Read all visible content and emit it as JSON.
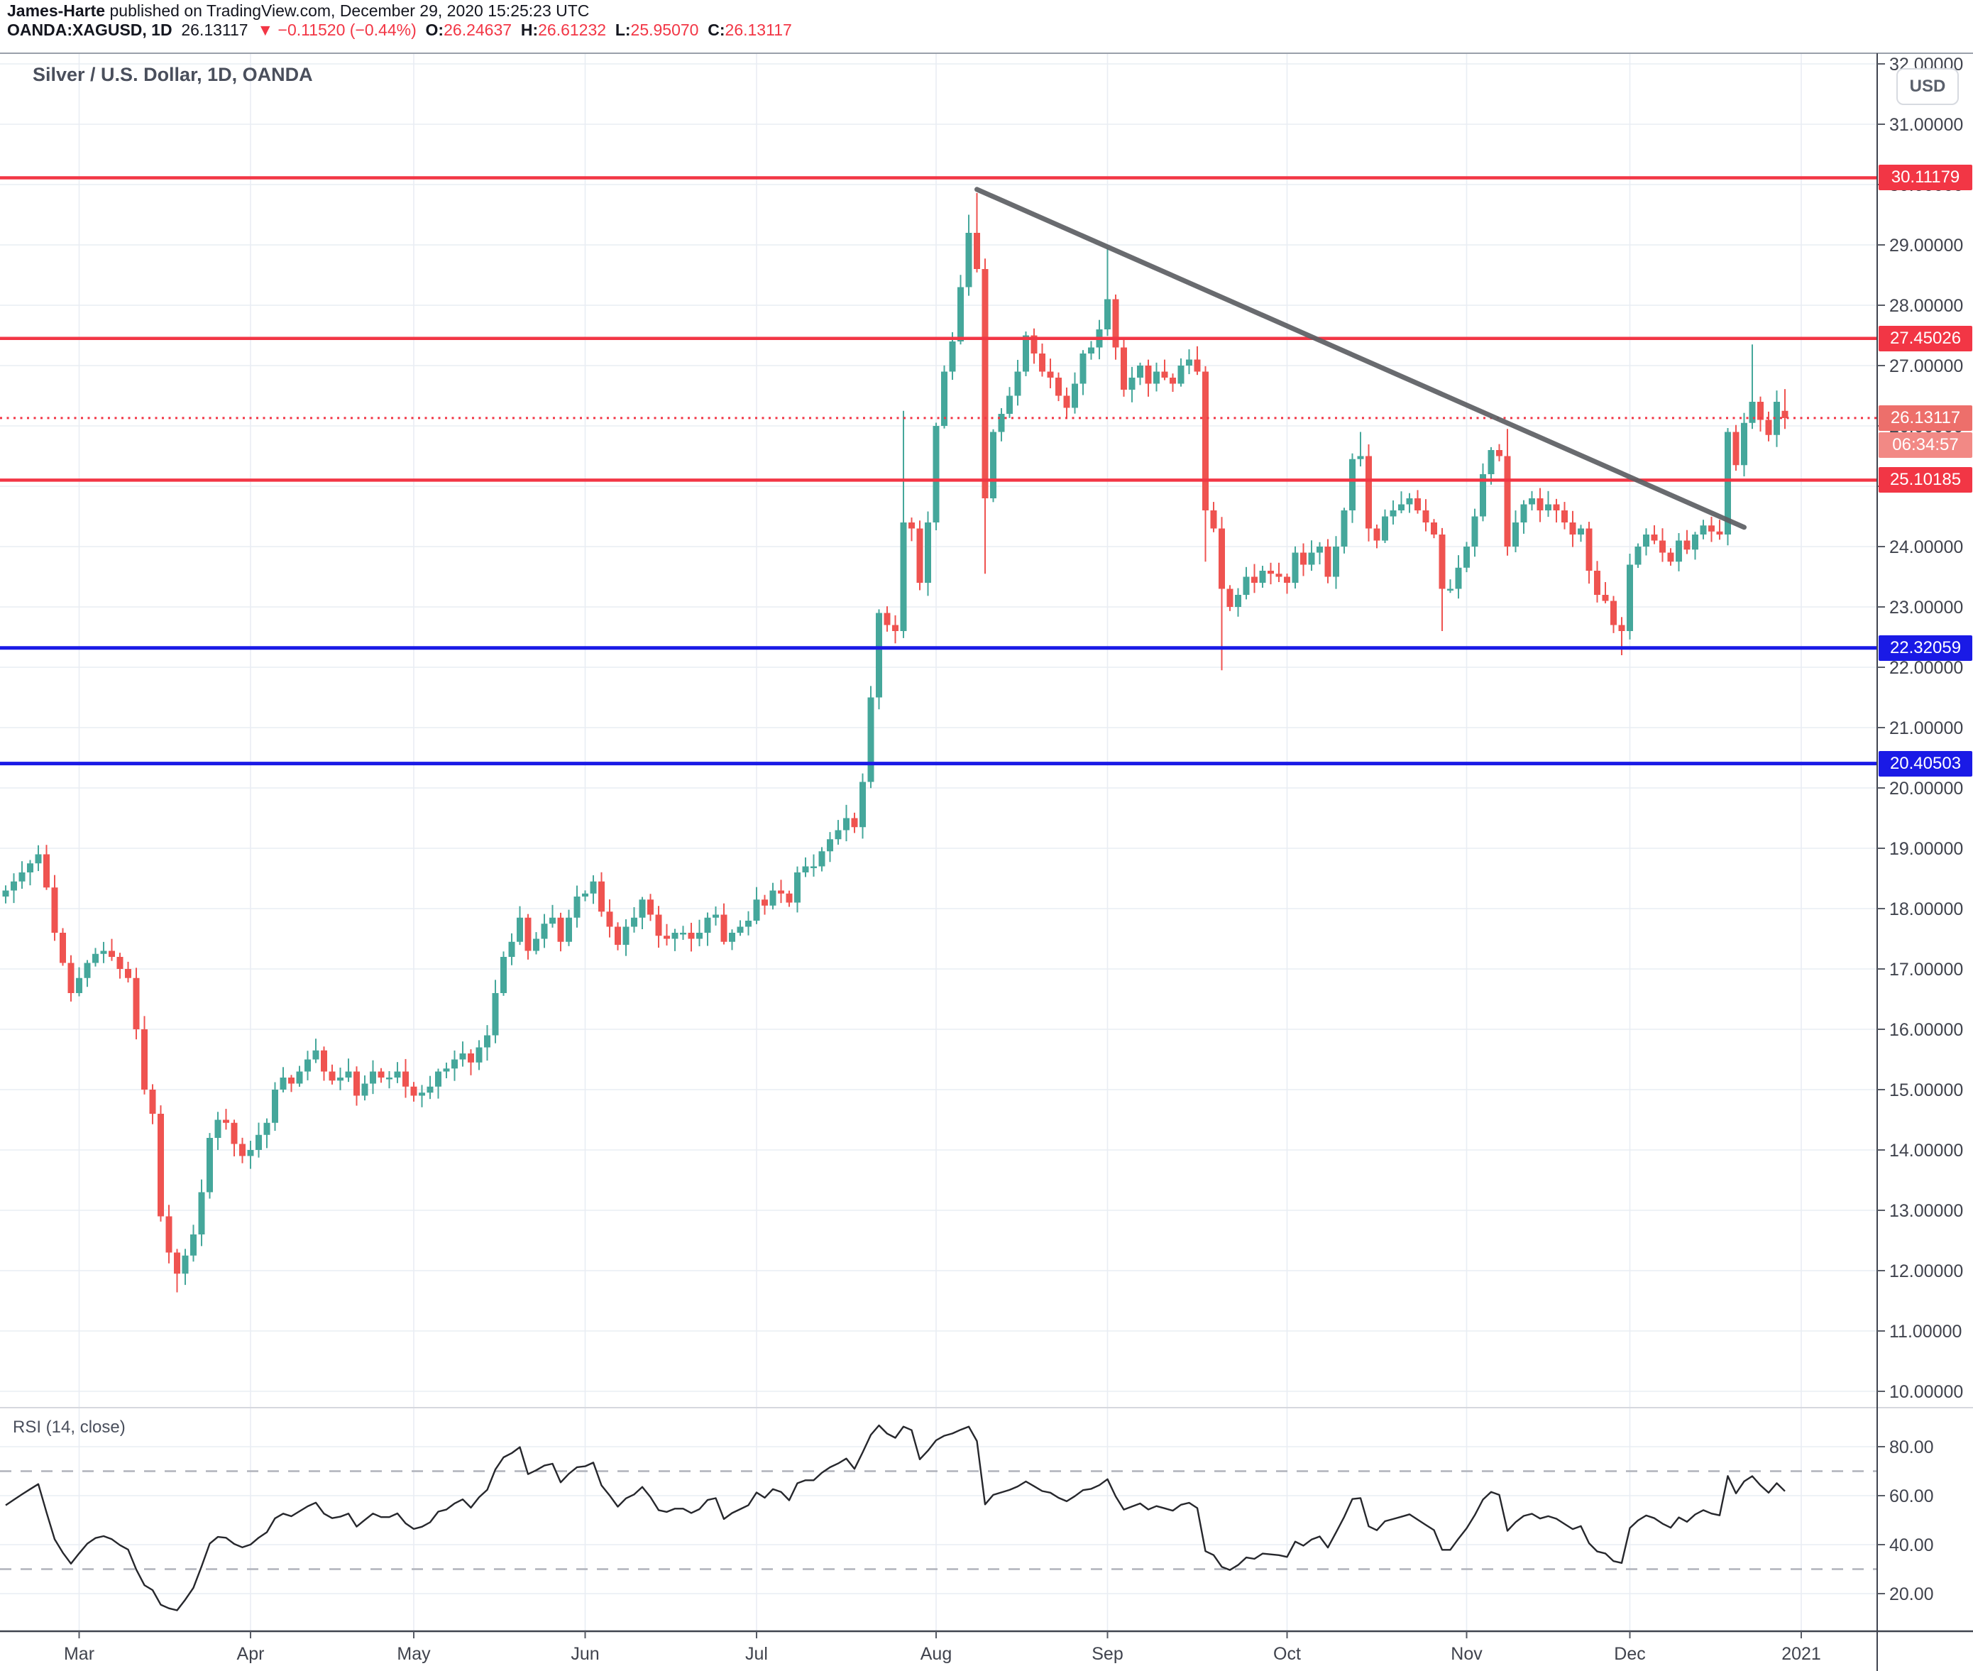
{
  "header": {
    "author": "James-Harte",
    "line1_rest": " published on TradingView.com, December 29, 2020 15:25:23 UTC",
    "symbol": "OANDA:XAGUSD, 1D",
    "last": "26.13117",
    "direction_icon": "▼",
    "change": "−0.11520 (−0.44%)",
    "ohlc": [
      {
        "k": "O:",
        "v": "26.24637"
      },
      {
        "k": "H:",
        "v": "26.61232"
      },
      {
        "k": "L:",
        "v": "25.95070"
      },
      {
        "k": "C:",
        "v": "26.13117"
      }
    ]
  },
  "chart": {
    "title": "Silver / U.S. Dollar, 1D, OANDA",
    "currency_button": "USD"
  },
  "price_axis": {
    "ticks": [
      {
        "v": 32,
        "label": "32.00000"
      },
      {
        "v": 31,
        "label": "31.00000"
      },
      {
        "v": 30,
        "label": "30.00000"
      },
      {
        "v": 29,
        "label": "29.00000"
      },
      {
        "v": 28,
        "label": "28.00000"
      },
      {
        "v": 27,
        "label": "27.00000"
      },
      {
        "v": 26,
        "label": "26.00000"
      },
      {
        "v": 25,
        "label": "25.00000"
      },
      {
        "v": 24,
        "label": "24.00000"
      },
      {
        "v": 23,
        "label": "23.00000"
      },
      {
        "v": 22,
        "label": "22.00000"
      },
      {
        "v": 21,
        "label": "21.00000"
      },
      {
        "v": 20,
        "label": "20.00000"
      },
      {
        "v": 19,
        "label": "19.00000"
      },
      {
        "v": 18,
        "label": "18.00000"
      },
      {
        "v": 17,
        "label": "17.00000"
      },
      {
        "v": 16,
        "label": "16.00000"
      },
      {
        "v": 15,
        "label": "15.00000"
      },
      {
        "v": 14,
        "label": "14.00000"
      },
      {
        "v": 13,
        "label": "13.00000"
      },
      {
        "v": 12,
        "label": "12.00000"
      },
      {
        "v": 11,
        "label": "11.00000"
      },
      {
        "v": 10,
        "label": "10.00000"
      }
    ]
  },
  "time_axis": {
    "labels": [
      {
        "label": "Mar",
        "index": 9
      },
      {
        "label": "Apr",
        "index": 30
      },
      {
        "label": "May",
        "index": 50
      },
      {
        "label": "Jun",
        "index": 71
      },
      {
        "label": "Jul",
        "index": 92
      },
      {
        "label": "Aug",
        "index": 114
      },
      {
        "label": "Sep",
        "index": 135
      },
      {
        "label": "Oct",
        "index": 157
      },
      {
        "label": "Nov",
        "index": 179
      },
      {
        "label": "Dec",
        "index": 199
      },
      {
        "label": "2021",
        "index": 220
      }
    ]
  },
  "levels": [
    {
      "price": 30.11179,
      "label": "30.11179",
      "kind": "resistance"
    },
    {
      "price": 27.45026,
      "label": "27.45026",
      "kind": "resistance"
    },
    {
      "price": 25.10185,
      "label": "25.10185",
      "kind": "resistance"
    },
    {
      "price": 22.32059,
      "label": "22.32059",
      "kind": "support"
    },
    {
      "price": 20.40503,
      "label": "20.40503",
      "kind": "support"
    }
  ],
  "price_line": {
    "price": 26.13117,
    "label": "26.13117",
    "countdown": "06:34:57"
  },
  "trendline": {
    "from_index": 119,
    "from_price": 29.92,
    "to_index": 213,
    "to_price": 24.32
  },
  "rsi_panel": {
    "label": "RSI (14, close)",
    "ticks": [
      {
        "v": 80,
        "label": "80.00"
      },
      {
        "v": 60,
        "label": "60.00"
      },
      {
        "v": 40,
        "label": "40.00"
      },
      {
        "v": 20,
        "label": "20.00"
      }
    ],
    "dashed_levels": [
      70,
      30
    ]
  },
  "chart_data": {
    "type": "candlestick",
    "symbol": "XAGUSD",
    "exchange": "OANDA",
    "interval": "1D",
    "ylabel": "USD",
    "y_range_visible": [
      10,
      32
    ],
    "rsi_period": 14,
    "first_open": 18.2,
    "closes": [
      18.3,
      18.45,
      18.6,
      18.75,
      18.9,
      18.35,
      17.6,
      17.1,
      16.6,
      16.85,
      17.1,
      17.25,
      17.3,
      17.2,
      17.0,
      16.85,
      16.0,
      15.0,
      14.6,
      12.9,
      12.3,
      11.95,
      12.25,
      12.6,
      13.3,
      14.2,
      14.5,
      14.45,
      14.1,
      13.9,
      14.0,
      14.25,
      14.45,
      15.0,
      15.2,
      15.1,
      15.3,
      15.5,
      15.65,
      15.3,
      15.15,
      15.2,
      15.3,
      14.9,
      15.1,
      15.3,
      15.2,
      15.2,
      15.3,
      15.05,
      14.9,
      14.95,
      15.05,
      15.3,
      15.35,
      15.5,
      15.6,
      15.45,
      15.7,
      15.9,
      16.6,
      17.2,
      17.45,
      17.85,
      17.3,
      17.5,
      17.75,
      17.85,
      17.45,
      17.85,
      18.2,
      18.25,
      18.45,
      17.95,
      17.7,
      17.4,
      17.7,
      17.85,
      18.15,
      17.9,
      17.55,
      17.5,
      17.6,
      17.6,
      17.5,
      17.6,
      17.85,
      17.9,
      17.45,
      17.6,
      17.7,
      17.8,
      18.15,
      18.05,
      18.3,
      18.25,
      18.1,
      18.6,
      18.7,
      18.7,
      18.95,
      19.15,
      19.3,
      19.5,
      19.35,
      20.1,
      21.5,
      22.9,
      22.7,
      22.6,
      24.4,
      24.3,
      23.4,
      24.4,
      26.0,
      26.9,
      27.4,
      28.3,
      29.2,
      28.6,
      24.8,
      25.9,
      26.2,
      26.5,
      26.9,
      27.5,
      27.2,
      26.9,
      26.8,
      26.5,
      26.3,
      26.7,
      27.2,
      27.3,
      27.6,
      28.1,
      27.3,
      26.6,
      26.8,
      27.0,
      26.7,
      26.9,
      26.8,
      26.7,
      27.0,
      27.1,
      26.9,
      24.6,
      24.3,
      23.3,
      23.0,
      23.2,
      23.5,
      23.4,
      23.6,
      23.55,
      23.5,
      23.4,
      23.9,
      23.7,
      23.9,
      24.0,
      23.5,
      24.0,
      24.6,
      25.45,
      25.5,
      24.3,
      24.1,
      24.5,
      24.6,
      24.7,
      24.8,
      24.6,
      24.4,
      24.2,
      23.3,
      23.3,
      23.65,
      24.0,
      24.5,
      25.2,
      25.6,
      25.5,
      24.0,
      24.4,
      24.7,
      24.8,
      24.6,
      24.7,
      24.6,
      24.4,
      24.2,
      24.3,
      23.6,
      23.2,
      23.1,
      22.7,
      22.6,
      23.7,
      24.0,
      24.2,
      24.1,
      23.9,
      23.75,
      24.1,
      23.95,
      24.2,
      24.35,
      24.25,
      24.2,
      25.9,
      25.35,
      26.05,
      26.4,
      26.1,
      25.85,
      26.4,
      26.13
    ],
    "overrides": {
      "4": {
        "h": 19.05
      },
      "21": {
        "l": 11.64
      },
      "110": {
        "h": 26.25
      },
      "118": {
        "h": 29.5
      },
      "119": {
        "h": 29.86
      },
      "120": {
        "l": 23.55
      },
      "135": {
        "h": 28.95
      },
      "147": {
        "l": 23.75
      },
      "149": {
        "l": 21.95
      },
      "166": {
        "h": 25.9
      },
      "176": {
        "l": 22.6
      },
      "184": {
        "h": 25.95,
        "l": 23.85
      },
      "198": {
        "l": 22.2
      },
      "214": {
        "h": 27.35
      },
      "218": {
        "o": 26.25,
        "h": 26.61,
        "l": 25.95,
        "c": 26.13
      }
    }
  },
  "colors": {
    "up": "#45a79b",
    "down": "#ef5350",
    "level_red": "#f23645",
    "level_blue": "#1a1ae6",
    "price_badge": "#ed6f6b",
    "countdown_badge": "#f28985",
    "trend": "#5d5f63",
    "grid": "#e9edf3",
    "axis_text": "#40434d",
    "frame_light": "#9aa0aa",
    "frame_dark": "#40444f",
    "rsi_line": "#26272c",
    "dashed": "#b0b3bb",
    "header_text": "#14161f",
    "header_red": "#f23645"
  }
}
